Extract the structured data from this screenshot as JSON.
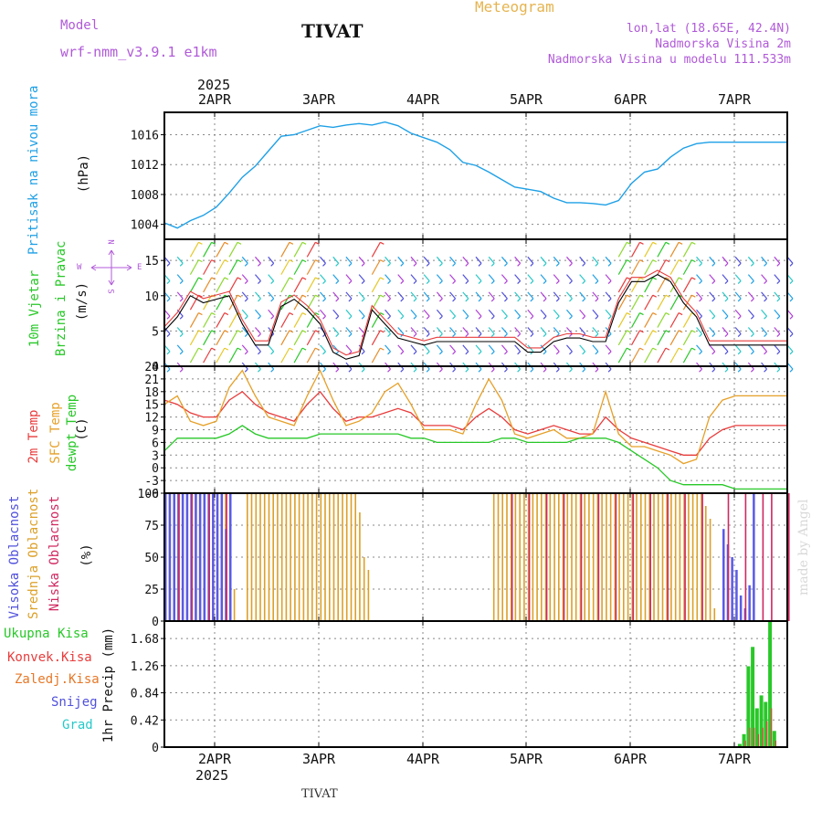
{
  "header": {
    "model_label": "Model",
    "model_name": "wrf-nmm_v3.9.1  e1km",
    "location_title": "TIVAT",
    "product": "Meteogram",
    "lonlat": "lon,lat (18.65E, 42.4N)",
    "altitude": "Nadmorska Visina 2m",
    "model_altitude": "Nadmorska Visina u modelu 111.533m",
    "top_year": "2025",
    "bottom_year": "2025",
    "footer_location": "TIVAT",
    "watermark": "made by Angel"
  },
  "time_axis": {
    "top_labels": [
      "2APR",
      "3APR",
      "4APR",
      "5APR",
      "6APR",
      "7APR"
    ],
    "bottom_labels": [
      "2APR",
      "3APR",
      "4APR",
      "5APR",
      "6APR",
      "7APR"
    ]
  },
  "panel_labels": {
    "pressure": {
      "title": "Pritisak na nivou mora",
      "unit": "(hPa)"
    },
    "wind": {
      "title1": "10m Vjetar",
      "title2": "Brzina i Pravac",
      "unit": "(m/s)",
      "compass_n": "N",
      "compass_s": "S",
      "compass_w": "W",
      "compass_e": "E"
    },
    "temperature": {
      "t2m": "2m Temp",
      "sfc": "SFC Temp",
      "dew": "dewpt Temp",
      "unit": "(C)"
    },
    "clouds": {
      "high": "Visoka Oblacnost",
      "mid": "Srednja Oblacnost",
      "low": "Niska Oblacnost",
      "unit": "(%)"
    },
    "precip": {
      "total": "Ukupna Kisa",
      "convective": "Konvek.Kisa",
      "freezing": "Zaledj.Kisa",
      "snow": "Snijeg",
      "hail": "Grad",
      "ylabel": "1hr Precip (mm)"
    }
  },
  "colors": {
    "pressure": "#1ea0e6",
    "t2m": "#e83c3c",
    "sfc": "#e6a028",
    "dew": "#28c828",
    "high_cloud": "#5a5ae6",
    "mid_cloud": "#dca028",
    "low_cloud": "#d02860",
    "precip_total": "#28c828",
    "precip_conv": "#e83c3c",
    "precip_freezing": "#e67828",
    "precip_snow": "#5050dc",
    "precip_hail": "#28c8c8",
    "frame": "#000000",
    "grid": "#888888",
    "title_purple": "#b05ad8",
    "title_orange": "#e6b450"
  },
  "chart_data": [
    {
      "type": "line",
      "name": "pressure",
      "x": [
        0,
        3,
        6,
        9,
        12,
        15,
        18,
        21,
        24,
        27,
        30,
        33,
        36,
        39,
        42,
        45,
        48,
        51,
        54,
        57,
        60,
        63,
        66,
        69,
        72,
        75,
        78,
        81,
        84,
        87,
        90,
        93,
        96,
        99,
        102,
        105,
        108,
        111,
        114,
        117,
        120,
        123,
        126,
        129,
        132,
        135,
        138,
        141,
        144
      ],
      "values": [
        1004.2,
        1003.5,
        1004.5,
        1005.2,
        1006.3,
        1008.2,
        1010.3,
        1011.8,
        1013.8,
        1015.8,
        1016.0,
        1016.6,
        1017.2,
        1017.0,
        1017.3,
        1017.5,
        1017.3,
        1017.7,
        1017.2,
        1016.2,
        1015.6,
        1015.0,
        1014.0,
        1012.3,
        1011.9,
        1011.0,
        1010.0,
        1009.0,
        1008.7,
        1008.4,
        1007.5,
        1006.9,
        1006.9,
        1006.8,
        1006.6,
        1007.2,
        1009.5,
        1011.0,
        1011.4,
        1013.0,
        1014.2,
        1014.8,
        1015.0,
        1015.0,
        1015.0,
        1015.0,
        1015.0,
        1015.0,
        1015.0
      ],
      "ylim": [
        1002,
        1019
      ],
      "yticks": [
        1004,
        1008,
        1012,
        1016
      ]
    },
    {
      "type": "line",
      "name": "wind_speed",
      "x": [
        0,
        3,
        6,
        9,
        12,
        15,
        18,
        21,
        24,
        27,
        30,
        33,
        36,
        39,
        42,
        45,
        48,
        51,
        54,
        57,
        60,
        63,
        66,
        69,
        72,
        75,
        78,
        81,
        84,
        87,
        90,
        93,
        96,
        99,
        102,
        105,
        108,
        111,
        114,
        117,
        120,
        123,
        126,
        129,
        132,
        135,
        138,
        141,
        144
      ],
      "values": [
        5,
        7,
        10,
        9,
        9.5,
        10,
        6,
        3,
        3,
        8.5,
        9.5,
        8,
        6,
        2,
        1,
        1.5,
        8,
        6,
        4,
        3.5,
        3,
        3.5,
        3.5,
        3.5,
        3.5,
        3.5,
        3.5,
        3.5,
        2,
        2,
        3.5,
        4,
        4,
        3.5,
        3.5,
        9,
        12,
        12,
        13,
        12,
        9,
        7,
        3,
        3,
        3,
        3,
        3,
        3,
        3
      ],
      "ylim": [
        0,
        18
      ],
      "yticks": [
        0,
        5,
        10,
        15
      ]
    },
    {
      "type": "line",
      "name": "temperature",
      "x": [
        0,
        3,
        6,
        9,
        12,
        15,
        18,
        21,
        24,
        27,
        30,
        33,
        36,
        39,
        42,
        45,
        48,
        51,
        54,
        57,
        60,
        63,
        66,
        69,
        72,
        75,
        78,
        81,
        84,
        87,
        90,
        93,
        96,
        99,
        102,
        105,
        108,
        111,
        114,
        117,
        120,
        123,
        126,
        129,
        132,
        135,
        138,
        141,
        144
      ],
      "series": [
        {
          "name": "2m Temp",
          "values": [
            16,
            15,
            13,
            12,
            12,
            16,
            18,
            15,
            13,
            12,
            11,
            15,
            18,
            14,
            11,
            12,
            12,
            13,
            14,
            13,
            10,
            10,
            10,
            9,
            12,
            14,
            12,
            9,
            8,
            9,
            10,
            9,
            8,
            8,
            12,
            9,
            7,
            6,
            5,
            4,
            3,
            3,
            7,
            9,
            10,
            10,
            10,
            10,
            10
          ]
        },
        {
          "name": "SFC Temp",
          "values": [
            15,
            17,
            11,
            10,
            11,
            19,
            23,
            17,
            12,
            11,
            10,
            17,
            23,
            16,
            10,
            11,
            13,
            18,
            20,
            15,
            9,
            9,
            9,
            8,
            15,
            21,
            16,
            8,
            7,
            8,
            9,
            7,
            7,
            8,
            18,
            8,
            5,
            5,
            4,
            3,
            1,
            2,
            12,
            16,
            17,
            17,
            17,
            17,
            17
          ]
        },
        {
          "name": "dewpt Temp",
          "values": [
            4,
            7,
            7,
            7,
            7,
            8,
            10,
            8,
            7,
            7,
            7,
            7,
            8,
            8,
            8,
            8,
            8,
            8,
            8,
            7,
            7,
            6,
            6,
            6,
            6,
            6,
            7,
            7,
            6,
            6,
            6,
            6,
            7,
            7,
            7,
            6,
            4,
            2,
            0,
            -3,
            -4,
            -4,
            -4,
            -4,
            -5,
            -5,
            -5,
            -5,
            -5
          ]
        }
      ],
      "ylim": [
        -6,
        24
      ],
      "yticks": [
        -6,
        -3,
        0,
        3,
        6,
        9,
        12,
        15,
        18,
        21,
        24
      ]
    },
    {
      "type": "bar",
      "name": "clouds",
      "ylim": [
        0,
        100
      ],
      "yticks": [
        0,
        25,
        50,
        75,
        100
      ],
      "series": [
        {
          "name": "Visoka Oblacnost",
          "x": [
            0,
            1,
            2,
            3,
            4,
            5,
            6,
            7,
            8,
            9,
            10,
            11,
            12,
            13,
            14,
            15,
            129,
            130,
            131,
            132,
            133,
            134,
            135,
            136
          ],
          "values": [
            100,
            100,
            100,
            100,
            100,
            100,
            100,
            100,
            100,
            100,
            100,
            100,
            100,
            100,
            72,
            100,
            72,
            60,
            50,
            40,
            20,
            10,
            28,
            100
          ]
        },
        {
          "name": "Srednja Oblacnost",
          "x": [
            0,
            1,
            2,
            3,
            4,
            5,
            6,
            7,
            8,
            9,
            10,
            11,
            12,
            13,
            14,
            15,
            16,
            17,
            18,
            19,
            20,
            21,
            22,
            23,
            24,
            25,
            26,
            27,
            28,
            29,
            30,
            31,
            32,
            33,
            34,
            35,
            36,
            37,
            38,
            39,
            40,
            41,
            42,
            43,
            44,
            45,
            46,
            47,
            48,
            49,
            50,
            51,
            52,
            53,
            54,
            55,
            56,
            57,
            58,
            59,
            60,
            61,
            62,
            63,
            64,
            65,
            66,
            67,
            68,
            69,
            70,
            71,
            72,
            73,
            74,
            75,
            76,
            77,
            78,
            79,
            80,
            81,
            82,
            83,
            84,
            85,
            86,
            87,
            88,
            89,
            90,
            91,
            92,
            93,
            94,
            95,
            96,
            97,
            98,
            99,
            100,
            101,
            102,
            103,
            104,
            105,
            106,
            107,
            108,
            109,
            110,
            111,
            112,
            113,
            114,
            115,
            116,
            117,
            118,
            119,
            120,
            121,
            122,
            123,
            124,
            125,
            126,
            127,
            128
          ],
          "values": [
            90,
            100,
            100,
            100,
            100,
            100,
            100,
            100,
            100,
            100,
            100,
            100,
            100,
            100,
            100,
            100,
            25,
            0,
            0,
            100,
            100,
            100,
            100,
            100,
            100,
            100,
            100,
            100,
            100,
            100,
            100,
            100,
            100,
            100,
            100,
            100,
            100,
            100,
            100,
            100,
            100,
            100,
            100,
            100,
            100,
            85,
            50,
            40,
            0,
            0,
            0,
            0,
            0,
            0,
            0,
            0,
            0,
            0,
            0,
            0,
            0,
            0,
            0,
            0,
            0,
            0,
            0,
            0,
            0,
            0,
            0,
            0,
            0,
            0,
            0,
            0,
            100,
            100,
            100,
            100,
            100,
            100,
            100,
            100,
            100,
            100,
            100,
            100,
            100,
            100,
            100,
            100,
            100,
            100,
            100,
            100,
            100,
            100,
            100,
            100,
            100,
            100,
            100,
            100,
            100,
            100,
            100,
            100,
            100,
            100,
            100,
            100,
            100,
            100,
            100,
            100,
            100,
            100,
            100,
            100,
            100,
            100,
            100,
            100,
            100,
            90,
            80,
            10,
            0
          ]
        },
        {
          "name": "Niska Oblacnost",
          "x": [
            3,
            6,
            10,
            14,
            80,
            84,
            88,
            92,
            96,
            100,
            104,
            108,
            112,
            116,
            120,
            124,
            130,
            134,
            138,
            140,
            144
          ],
          "values": [
            100,
            100,
            100,
            100,
            100,
            100,
            100,
            100,
            100,
            100,
            100,
            100,
            100,
            100,
            100,
            100,
            100,
            100,
            100,
            100,
            100
          ]
        }
      ]
    },
    {
      "type": "bar",
      "name": "precipitation",
      "x": [
        133,
        134,
        135,
        136,
        137,
        138,
        139,
        140,
        141,
        142,
        143
      ],
      "series": [
        {
          "name": "Ukupna Kisa",
          "values": [
            0.05,
            0.2,
            1.25,
            1.55,
            0.6,
            0.8,
            0.7,
            1.95,
            0.25,
            0.0,
            0.0
          ]
        },
        {
          "name": "Konvek.Kisa",
          "values": [
            0.02,
            0.1,
            0.3,
            0.3,
            0.2,
            0.3,
            0.4,
            0.6,
            0.1,
            0.0,
            0.0
          ]
        }
      ],
      "ylim": [
        0,
        1.95
      ],
      "yticks": [
        0,
        0.42,
        0.84,
        1.26,
        1.68
      ]
    }
  ]
}
